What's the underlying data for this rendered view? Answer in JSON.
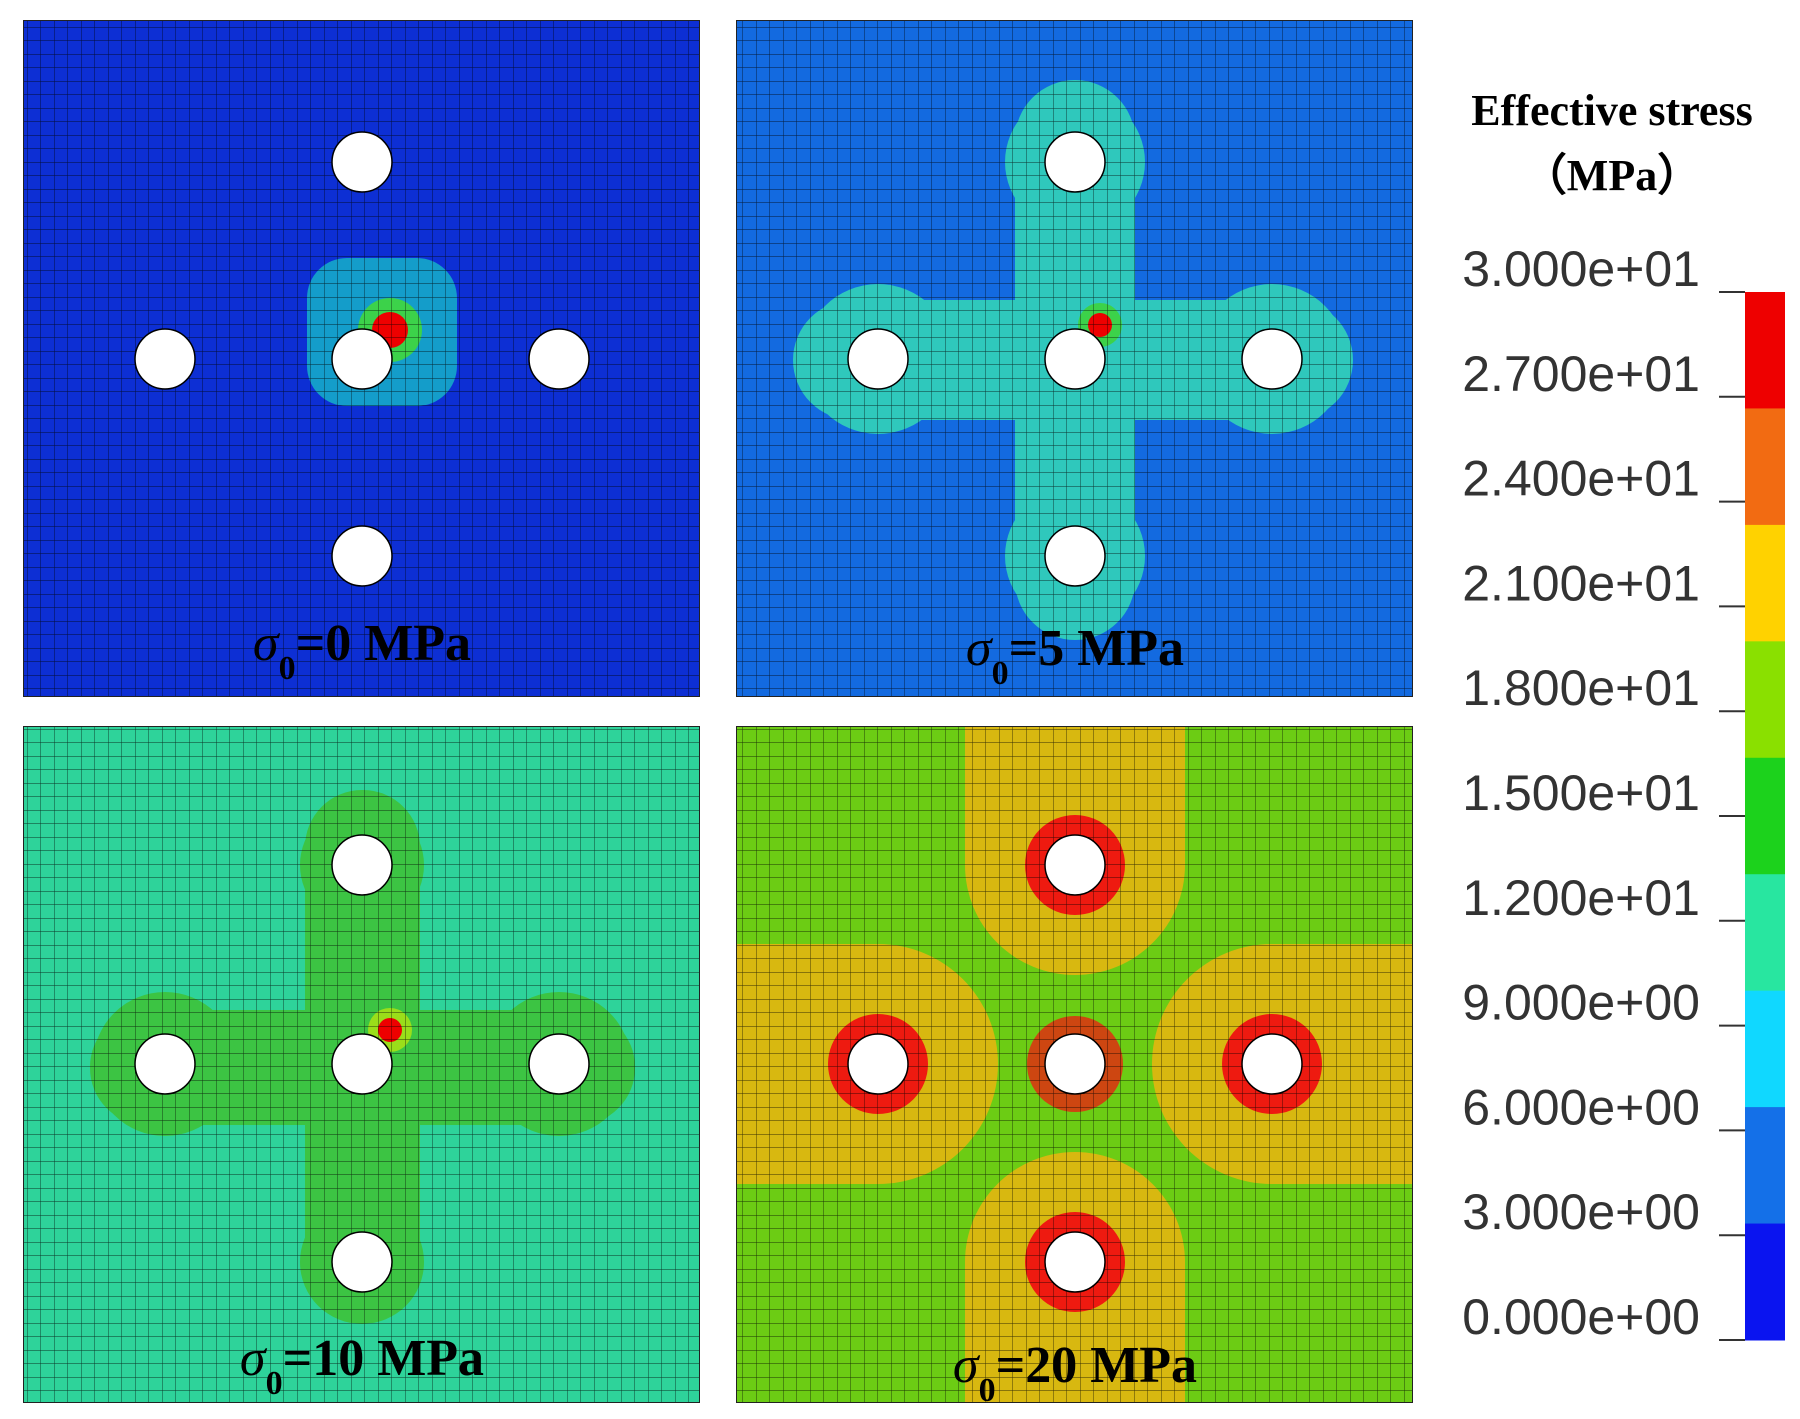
{
  "legend": {
    "title": "Effective stress",
    "unit": "（MPa）",
    "ticks": [
      "3.000e+01",
      "2.700e+01",
      "2.400e+01",
      "2.100e+01",
      "1.800e+01",
      "1.500e+01",
      "1.200e+01",
      "9.000e+00",
      "6.000e+00",
      "3.000e+00",
      "0.000e+00"
    ],
    "colors": [
      "#ee0000",
      "#f26b12",
      "#ffd200",
      "#8ae000",
      "#1cd21c",
      "#28e6a0",
      "#10d8ff",
      "#1470e8",
      "#0a14f0"
    ]
  },
  "panels": [
    {
      "symbol": "σ",
      "subscript": "0",
      "value": "=0 MPa",
      "background": "#0d2fd4",
      "halo": "#16b0c8",
      "halo_size": "small",
      "halo_tips": "#3cd24a"
    },
    {
      "symbol": "σ",
      "subscript": "0",
      "value": "=5 MPa",
      "background": "#136ae0",
      "halo": "#2fc8bc",
      "halo_size": "medium",
      "halo_tips": "#3cd24a"
    },
    {
      "symbol": "σ",
      "subscript": "0",
      "value": "=10 MPa",
      "background": "#2ed39a",
      "halo": "#3cc443",
      "halo_size": "medium",
      "halo_tips": "#9ade1a"
    },
    {
      "symbol": "σ",
      "subscript": "0",
      "value": "=20 MPa",
      "background": "#6ccc14",
      "halo": "#d8b810",
      "halo_size": "large",
      "halo_tips": "#ee1a10"
    }
  ]
}
